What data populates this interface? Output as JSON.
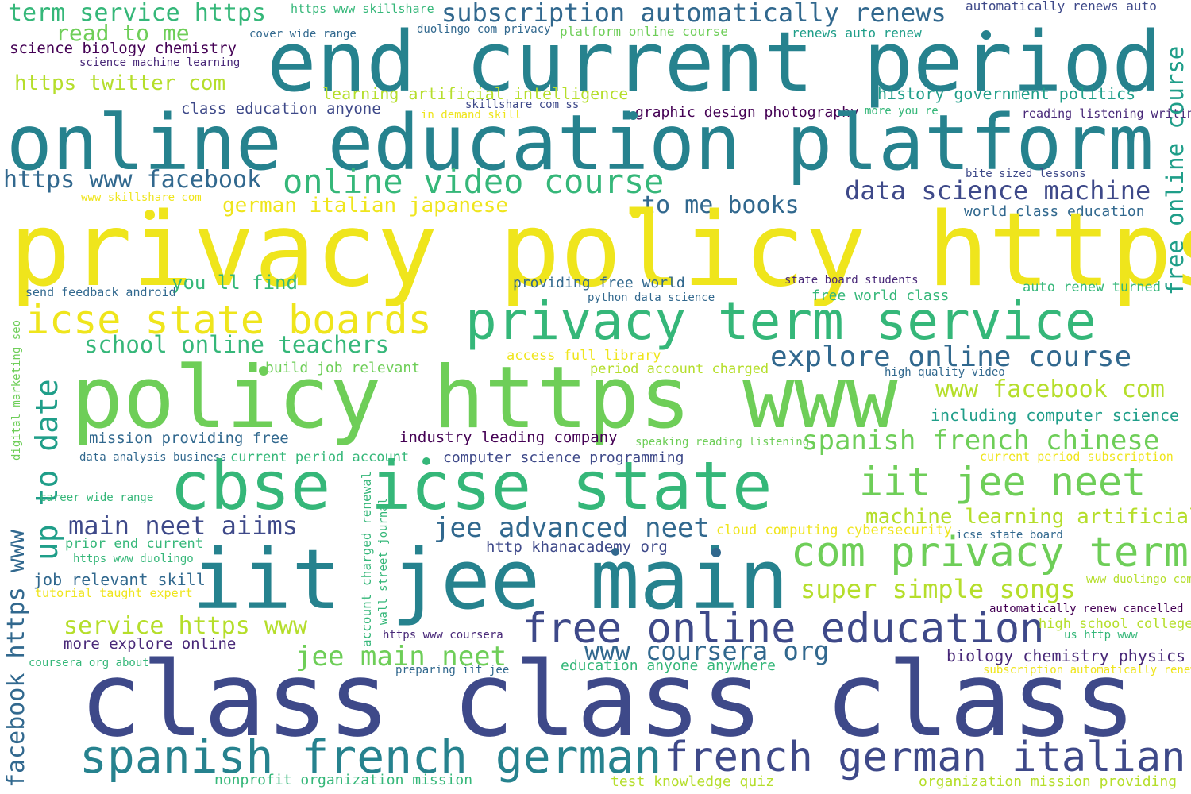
{
  "palette": {
    "yellow": "#efe51c",
    "lime": "#b5de2b",
    "green": "#6ece58",
    "seagreen": "#35b779",
    "teal": "#1f9e89",
    "cyan": "#26828e",
    "blue": "#31688e",
    "indigo": "#3e4989",
    "purple": "#482878",
    "dark": "#440154"
  },
  "words": [
    "term service https",
    "https www skillshare",
    "subscription automatically renews",
    "automatically renews auto",
    "read to me",
    "cover wide range",
    "duolingo com privacy",
    "platform online course",
    "renews auto renew",
    "science biology chemistry",
    "science machine learning",
    "end current period",
    "https twitter com",
    "learning artificial intelligence",
    "history government politics",
    "class education anyone",
    "skillshare com ss",
    "in demand skill",
    "graphic design photography",
    "more you re",
    "reading listening writing",
    "online education platform",
    "free online course",
    "https www facebook",
    "online video course",
    "bite sized lessons",
    "data science machine",
    "www skillshare com",
    "german italian japanese",
    "to me books",
    "world class education",
    "privacy policy https",
    "you ll find",
    "providing free world",
    "state board students",
    "send feedback android",
    "python data science",
    "auto renew turned",
    "free world class",
    "icse state boards",
    "privacy term service",
    "school online teachers",
    "access full library",
    "explore online course",
    "digital marketing seo",
    "up to date",
    "build job relevant",
    "period account charged",
    "high quality video",
    "policy https www",
    "www facebook com",
    "including computer science",
    "mission providing free",
    "industry leading company",
    "speaking reading listening",
    "spanish french chinese",
    "data analysis business",
    "current period account",
    "computer science programming",
    "current period subscription",
    "account charged renewal",
    "cbse icse state",
    "iit jee neet",
    "career wide range",
    "wall street journal",
    "machine learning artificial",
    "main neet aiims",
    "jee advanced neet",
    "cloud computing cybersecurity",
    "icse state board",
    "prior end current",
    "http khanacademy org",
    "com privacy term",
    "facebook https www",
    "https www duolingo",
    "iit jee main",
    "www duolingo com",
    "job relevant skill",
    "super simple songs",
    "tutorial taught expert",
    "automatically renew cancelled",
    "service https www",
    "free online education",
    "high school college",
    "https www coursera",
    "us http www",
    "more explore online",
    "www coursera org",
    "jee main neet",
    "biology chemistry physics",
    "coursera org about",
    "education anyone anywhere",
    "preparing iit jee",
    "subscription automatically renew",
    "class class class",
    "spanish french german",
    "french german italian",
    "nonprofit organization mission",
    "test knowledge quiz",
    "organization mission providing"
  ]
}
